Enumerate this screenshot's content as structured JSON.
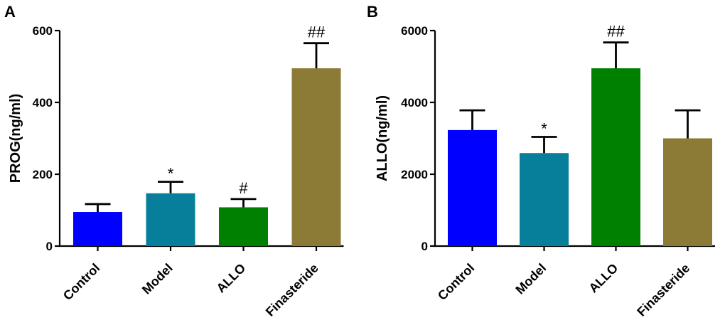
{
  "chart_data": [
    {
      "panel": "A",
      "type": "bar",
      "ylabel": "PROG(ng/ml)",
      "xlabel": "",
      "categories": [
        "Control",
        "Model",
        "ALLO",
        "Finasteride"
      ],
      "values": [
        95,
        147,
        108,
        495
      ],
      "errors": [
        22,
        32,
        23,
        70
      ],
      "annotations": [
        "",
        "*",
        "#",
        "##"
      ],
      "colors": [
        "#0000ff",
        "#087f9a",
        "#008000",
        "#8b7b37"
      ],
      "ylim": [
        0,
        600
      ],
      "yticks": [
        0,
        200,
        400,
        600
      ],
      "yticklabels": [
        "0",
        "200",
        "400",
        "600"
      ]
    },
    {
      "panel": "B",
      "type": "bar",
      "ylabel": "ALLO(ng/ml)",
      "xlabel": "",
      "categories": [
        "Control",
        "Model",
        "ALLO",
        "Finasteride"
      ],
      "values": [
        3230,
        2590,
        4950,
        3000
      ],
      "errors": [
        550,
        450,
        720,
        780
      ],
      "annotations": [
        "",
        "*",
        "##",
        ""
      ],
      "colors": [
        "#0000ff",
        "#087f9a",
        "#008000",
        "#8b7b37"
      ],
      "ylim": [
        0,
        6000
      ],
      "yticks": [
        0,
        2000,
        4000,
        6000
      ],
      "yticklabels": [
        "0",
        "2000",
        "4000",
        "6000"
      ]
    }
  ]
}
